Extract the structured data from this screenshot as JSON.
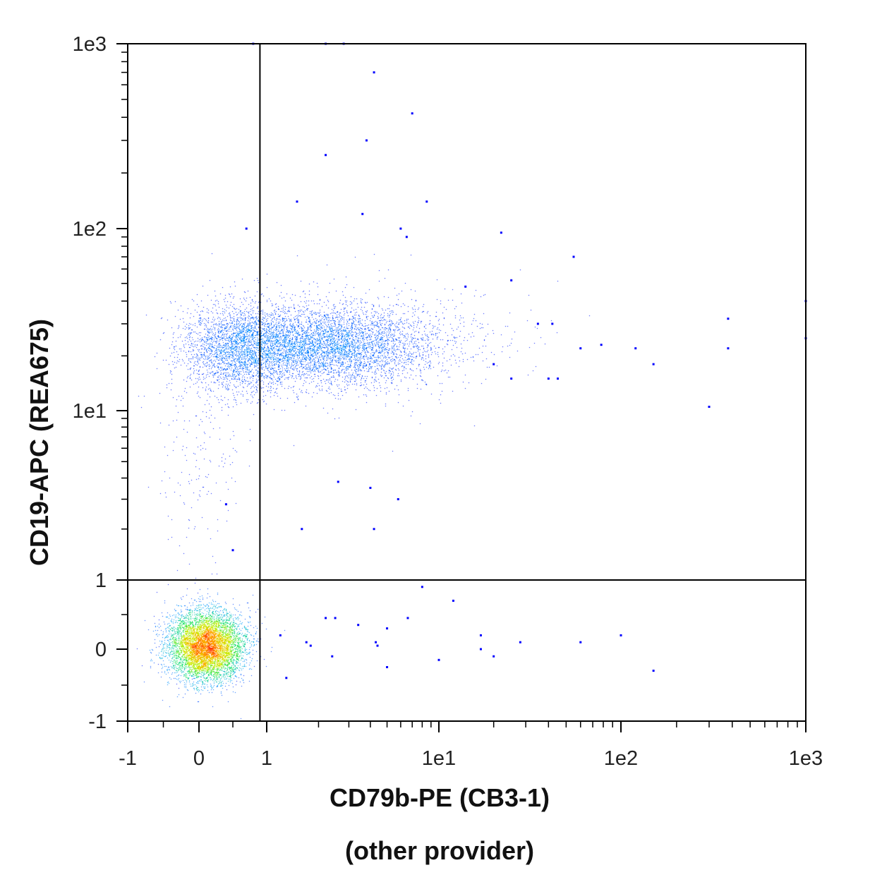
{
  "chart_data": {
    "type": "scatter",
    "subtype": "flow-cytometry-density-dot-plot",
    "xlabel": "CD79b-PE (CB3-1)",
    "xlabel_line2": "(other provider)",
    "ylabel": "CD19-APC (REA675)",
    "x_scale": "biexponential",
    "y_scale": "biexponential",
    "xlim": [
      -1,
      1000
    ],
    "ylim": [
      -1,
      1000
    ],
    "x_ticks": [
      {
        "value": -1,
        "label": "-1"
      },
      {
        "value": 0,
        "label": "0"
      },
      {
        "value": 1,
        "label": "1"
      },
      {
        "value": 10,
        "label": "1e1"
      },
      {
        "value": 100,
        "label": "1e2"
      },
      {
        "value": 1000,
        "label": "1e3"
      }
    ],
    "y_ticks": [
      {
        "value": -1,
        "label": "-1"
      },
      {
        "value": 0,
        "label": "0"
      },
      {
        "value": 1,
        "label": "1"
      },
      {
        "value": 10,
        "label": "1e1"
      },
      {
        "value": 100,
        "label": "1e2"
      },
      {
        "value": 1000,
        "label": "1e3"
      }
    ],
    "quadrant_gates": {
      "x": 0.9,
      "y": 1
    },
    "grid": false,
    "density_colormap": [
      "#0000ff",
      "#00a0ff",
      "#00e060",
      "#c8f000",
      "#ffb000",
      "#ff2000"
    ],
    "populations": [
      {
        "name": "double-negative",
        "center": [
          0.1,
          0.05
        ],
        "spread": [
          0.28,
          0.28
        ],
        "peak_density": "high"
      },
      {
        "name": "CD19+ CD79b low",
        "center": [
          0.6,
          22
        ],
        "spread": [
          0.35,
          0.35
        ],
        "peak_density": "low"
      },
      {
        "name": "CD19+ CD79b+",
        "center": [
          2.2,
          23
        ],
        "spread": [
          0.45,
          0.22
        ],
        "peak_density": "low"
      }
    ],
    "outlier_points": [
      [
        0.8,
        1000
      ],
      [
        2.2,
        1000
      ],
      [
        2.8,
        1000
      ],
      [
        4.2,
        700
      ],
      [
        7,
        420
      ],
      [
        2.2,
        250
      ],
      [
        3.8,
        300
      ],
      [
        8.5,
        140
      ],
      [
        1.5,
        140
      ],
      [
        3.6,
        120
      ],
      [
        22,
        95
      ],
      [
        55,
        70
      ],
      [
        6,
        100
      ],
      [
        6.5,
        90
      ],
      [
        0.7,
        100
      ],
      [
        14,
        48
      ],
      [
        25,
        52
      ],
      [
        35,
        30
      ],
      [
        42,
        30
      ],
      [
        60,
        22
      ],
      [
        78,
        23
      ],
      [
        120,
        22
      ],
      [
        150,
        18
      ],
      [
        380,
        32
      ],
      [
        380,
        22
      ],
      [
        300,
        10.5
      ],
      [
        1000,
        40
      ],
      [
        1000,
        25
      ],
      [
        45,
        15
      ],
      [
        40,
        15
      ],
      [
        20,
        18
      ],
      [
        25,
        15
      ],
      [
        2.6,
        3.8
      ],
      [
        4,
        3.5
      ],
      [
        5.8,
        3.0
      ],
      [
        4.2,
        2.0
      ],
      [
        1.6,
        2.0
      ],
      [
        0.4,
        2.8
      ],
      [
        0.5,
        1.5
      ],
      [
        12,
        0.7
      ],
      [
        8,
        0.9
      ],
      [
        2.5,
        0.45
      ],
      [
        3.4,
        0.35
      ],
      [
        5,
        0.3
      ],
      [
        6.6,
        0.45
      ],
      [
        1.2,
        0.2
      ],
      [
        1.7,
        0.1
      ],
      [
        2.4,
        -0.1
      ],
      [
        4.3,
        0.1
      ],
      [
        5,
        -0.25
      ],
      [
        10,
        -0.15
      ],
      [
        17,
        0.2
      ],
      [
        17,
        0.0
      ],
      [
        20,
        -0.1
      ],
      [
        28,
        0.1
      ],
      [
        60,
        0.1
      ],
      [
        100,
        0.2
      ],
      [
        150,
        -0.3
      ],
      [
        1.3,
        -0.4
      ],
      [
        1.8,
        0.05
      ],
      [
        2.2,
        0.45
      ],
      [
        4.4,
        0.05
      ]
    ]
  }
}
